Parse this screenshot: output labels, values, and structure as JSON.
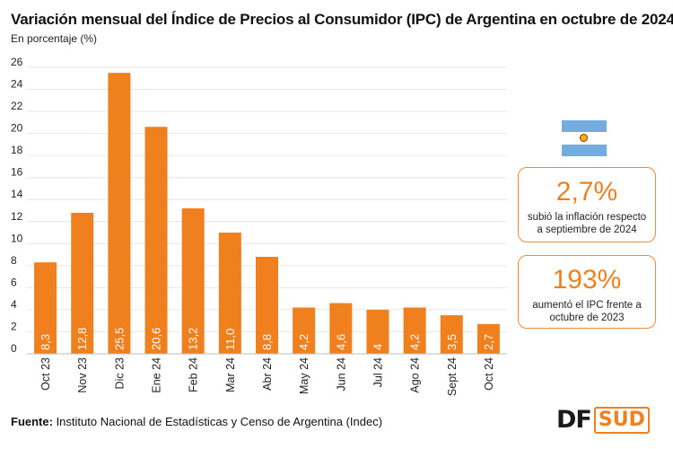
{
  "header": {
    "title": "Variación mensual del Índice de Precios al Consumidor (IPC) de Argentina en octubre de 2024",
    "subtitle": "En porcentaje (%)"
  },
  "chart_data": {
    "type": "bar",
    "title": "Variación mensual del Índice de Precios al Consumidor (IPC) de Argentina en octubre de 2024",
    "subtitle": "En porcentaje (%)",
    "xlabel": "",
    "ylabel": "",
    "categories": [
      "Oct 23",
      "Nov 23",
      "Dic 23",
      "Ene 24",
      "Feb 24",
      "Mar 24",
      "Abr 24",
      "May 24",
      "Jun 24",
      "Jul 24",
      "Ago 24",
      "Sept 24",
      "Oct 24"
    ],
    "values": [
      8.3,
      12.8,
      25.5,
      20.6,
      13.2,
      11.0,
      8.8,
      4.2,
      4.6,
      4,
      4.2,
      3.5,
      2.7
    ],
    "value_labels": [
      "8,3",
      "12,8",
      "25,5",
      "20,6",
      "13,2",
      "11,0",
      "8,8",
      "4,2",
      "4,6",
      "4",
      "4,2",
      "3,5",
      "2,7"
    ],
    "yticks": [
      0,
      2,
      4,
      6,
      8,
      10,
      12,
      14,
      16,
      18,
      20,
      22,
      24,
      26
    ],
    "ylim": [
      0,
      26
    ],
    "grid": true,
    "bar_color": "#f07f1e",
    "grid_color": "#e6e6e6"
  },
  "cards": [
    {
      "value": "2,7%",
      "text": "subió la inflación respecto a septiembre de 2024"
    },
    {
      "value": "193%",
      "text": "aumentó el IPC frente a octubre de 2023"
    }
  ],
  "flag": {
    "icon": "argentina-flag-icon"
  },
  "footer": {
    "source_label": "Fuente:",
    "source_text": " Instituto Nacional de Estadísticas y Censo de Argentina (Indec)"
  },
  "logo": {
    "part1": "DF",
    "part2": "SUD"
  },
  "colors": {
    "accent": "#f07f1e",
    "card_border": "#f08a3a"
  }
}
